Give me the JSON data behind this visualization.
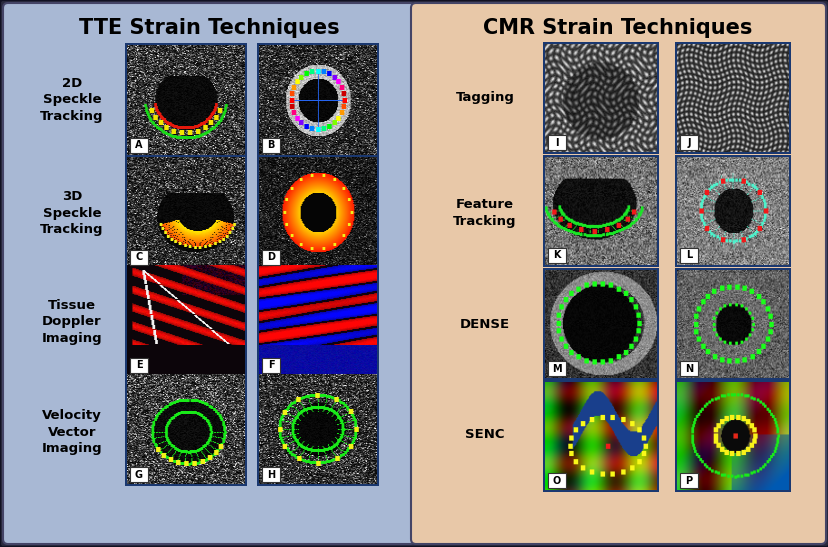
{
  "title_left": "TTE Strain Techniques",
  "title_right": "CMR Strain Techniques",
  "bg_left": "#a8b8d4",
  "bg_right": "#e8c8a8",
  "img_border_color": "#1a3870",
  "outer_bg": "#2a2a3e",
  "left_labels": [
    "2D\nSpeckle\nTracking",
    "3D\nSpeckle\nTracking",
    "Tissue\nDoppler\nImaging",
    "Velocity\nVector\nImaging"
  ],
  "right_labels": [
    "Tagging",
    "Feature\nTracking",
    "DENSE",
    "SENC"
  ],
  "left_img_labels": [
    "A",
    "B",
    "C",
    "D",
    "E",
    "F",
    "G",
    "H"
  ],
  "right_img_labels": [
    "I",
    "J",
    "K",
    "L",
    "M",
    "N",
    "O",
    "P"
  ],
  "fig_w": 8.29,
  "fig_h": 5.47,
  "dpi": 100
}
